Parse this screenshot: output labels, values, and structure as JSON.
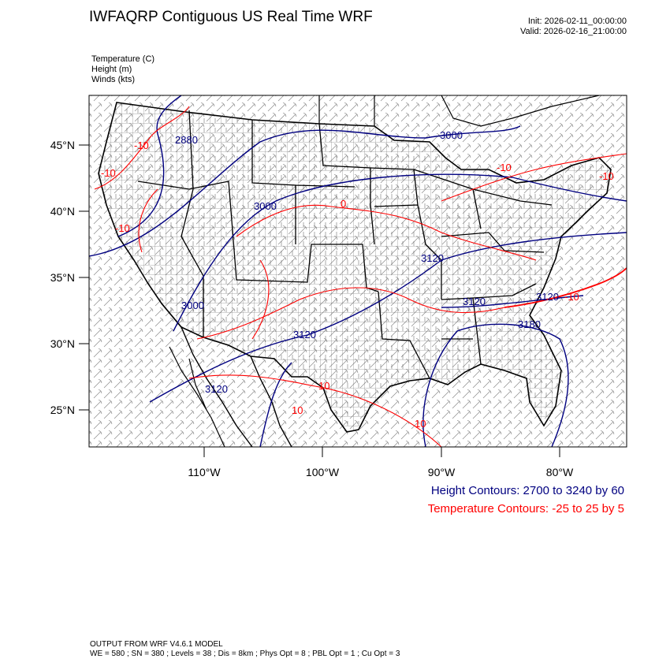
{
  "header": {
    "title": "IWFAQRP Contiguous US Real Time WRF",
    "init": "Init: 2026-02-11_00:00:00",
    "valid": "Valid: 2026-02-16_21:00:00"
  },
  "variables": [
    "Temperature   (C)",
    "Height   (m)",
    "Winds   (kts)"
  ],
  "map": {
    "lat_labels": [
      "45°N",
      "40°N",
      "35°N",
      "30°N",
      "25°N"
    ],
    "lon_labels": [
      "110°W",
      "100°W",
      "90°W",
      "80°W"
    ],
    "height_contour_labels": [
      "2880",
      "3000",
      "3000",
      "3000",
      "3120",
      "3120",
      "3120",
      "3120",
      "3120",
      "3180"
    ],
    "temp_contour_labels": [
      "-10",
      "-10",
      "-10",
      "-10",
      "0",
      "-10",
      "10",
      "10",
      "10",
      "-10"
    ],
    "colors": {
      "height": "#000080",
      "temperature": "#ff0000",
      "boundaries": "#000000"
    }
  },
  "legend": {
    "height": "Height Contours: 2700 to 3240 by 60",
    "temperature": "Temperature Contours: -25 to 25 by 5"
  },
  "footer": {
    "line1": "OUTPUT FROM WRF V4.6.1 MODEL",
    "line2": "WE = 580 ; SN = 380 ; Levels = 38 ; Dis = 8km ; Phys Opt = 8 ; PBL Opt = 1 ; Cu Opt = 3"
  }
}
